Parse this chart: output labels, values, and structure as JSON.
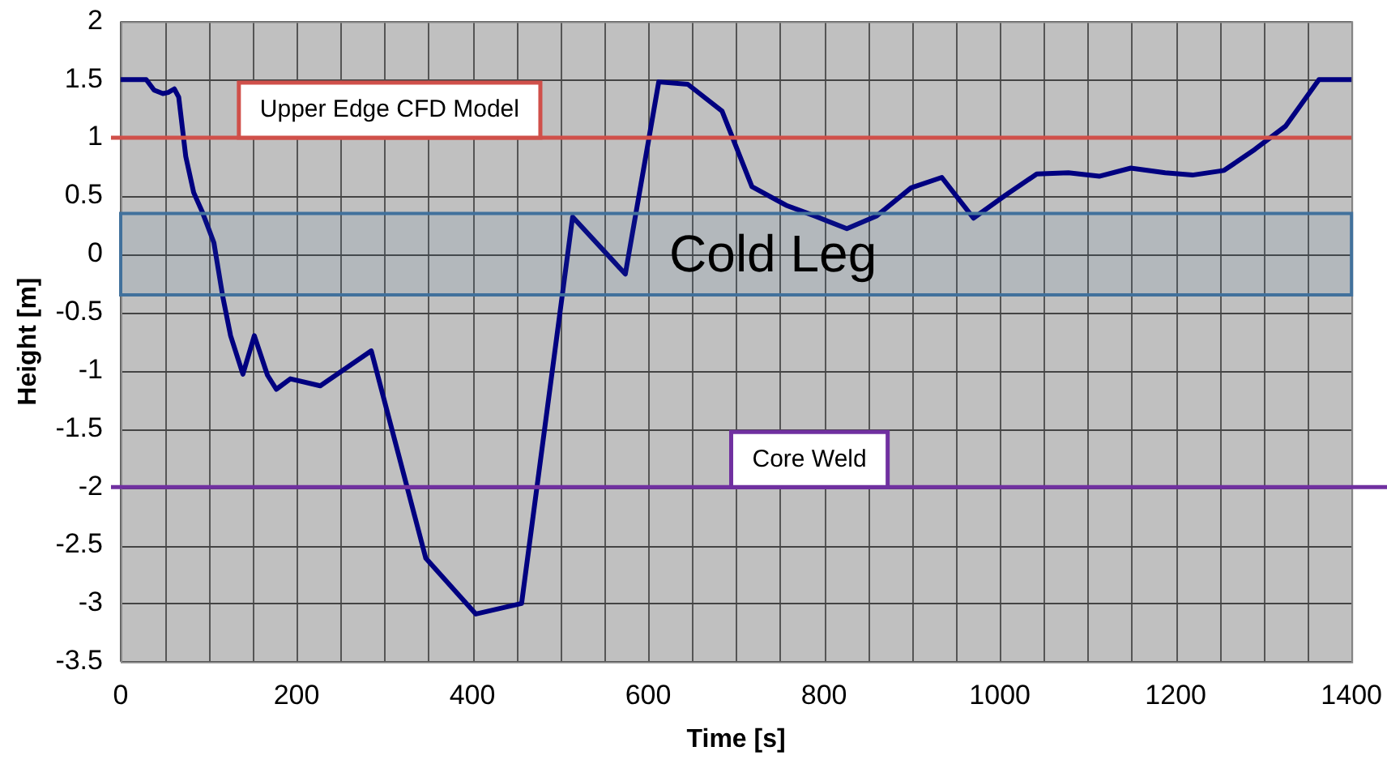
{
  "chart_data": {
    "type": "line",
    "xlabel": "Time [s]",
    "ylabel": "Height [m]",
    "x": [
      0,
      29,
      38,
      48,
      54,
      61,
      66,
      74,
      83,
      93,
      106,
      116,
      125,
      139,
      152,
      167,
      177,
      193,
      227,
      285,
      347,
      404,
      456,
      514,
      574,
      612,
      645,
      684,
      718,
      757,
      789,
      826,
      860,
      899,
      934,
      970,
      1007,
      1042,
      1078,
      1113,
      1149,
      1188,
      1219,
      1255,
      1290,
      1325,
      1363,
      1388,
      1400
    ],
    "series": [
      {
        "color": "#000080",
        "values": [
          1.5,
          1.5,
          1.41,
          1.38,
          1.39,
          1.42,
          1.35,
          0.84,
          0.53,
          0.36,
          0.1,
          -0.36,
          -0.7,
          -1.03,
          -0.7,
          -1.04,
          -1.16,
          -1.07,
          -1.13,
          -0.83,
          -2.61,
          -3.09,
          -3.0,
          0.32,
          -0.17,
          1.48,
          1.46,
          1.23,
          0.58,
          0.42,
          0.33,
          0.22,
          0.33,
          0.57,
          0.66,
          0.31,
          0.51,
          0.69,
          0.7,
          0.67,
          0.74,
          0.7,
          0.68,
          0.72,
          0.9,
          1.1,
          1.5,
          1.5,
          1.5
        ]
      }
    ],
    "xlim": [
      0,
      1400
    ],
    "xticks": [
      0,
      {
        "value": 50,
        "label": null
      },
      200,
      {
        "value": 250,
        "label": null
      },
      400,
      600,
      800,
      1000,
      1200,
      1400
    ],
    "ylim": [
      -3.5,
      2
    ],
    "yticks": [
      -3.5,
      -3,
      -2.5,
      -2,
      -1.5,
      -1,
      -0.5,
      0,
      0.5,
      1,
      1.5,
      2
    ],
    "grid": true,
    "legend": false,
    "marker": "none",
    "line_style": "solid",
    "ref_lines": [
      {
        "axis": "y",
        "value": 1,
        "label": "Upper Edge CFD Model",
        "color": "#d0504a"
      },
      {
        "axis": "y",
        "value": -2,
        "label": "Core Weld",
        "color": "#7030a0"
      }
    ],
    "bands": [
      {
        "axis": "y",
        "from": -0.35,
        "to": 0.35,
        "label": "Cold Leg",
        "color": "#41719c"
      }
    ]
  }
}
